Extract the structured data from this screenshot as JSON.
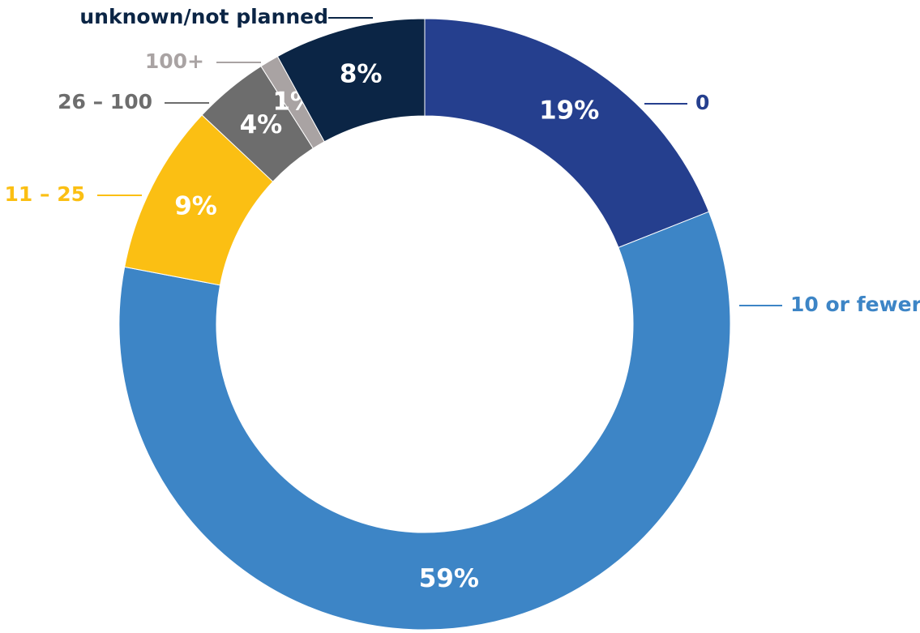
{
  "chart_data": {
    "type": "donut",
    "categories": [
      "0",
      "10 or fewer",
      "11 – 25",
      "26 – 100",
      "100+",
      "unknown/not planned"
    ],
    "values": [
      19,
      59,
      9,
      4,
      1,
      8
    ],
    "value_labels": [
      "19%",
      "59%",
      "9%",
      "4%",
      "1%",
      "8%"
    ],
    "colors": [
      "#253f8e",
      "#3d85c6",
      "#fbbf13",
      "#6d6d6d",
      "#a9a3a3",
      "#0b2545"
    ]
  }
}
